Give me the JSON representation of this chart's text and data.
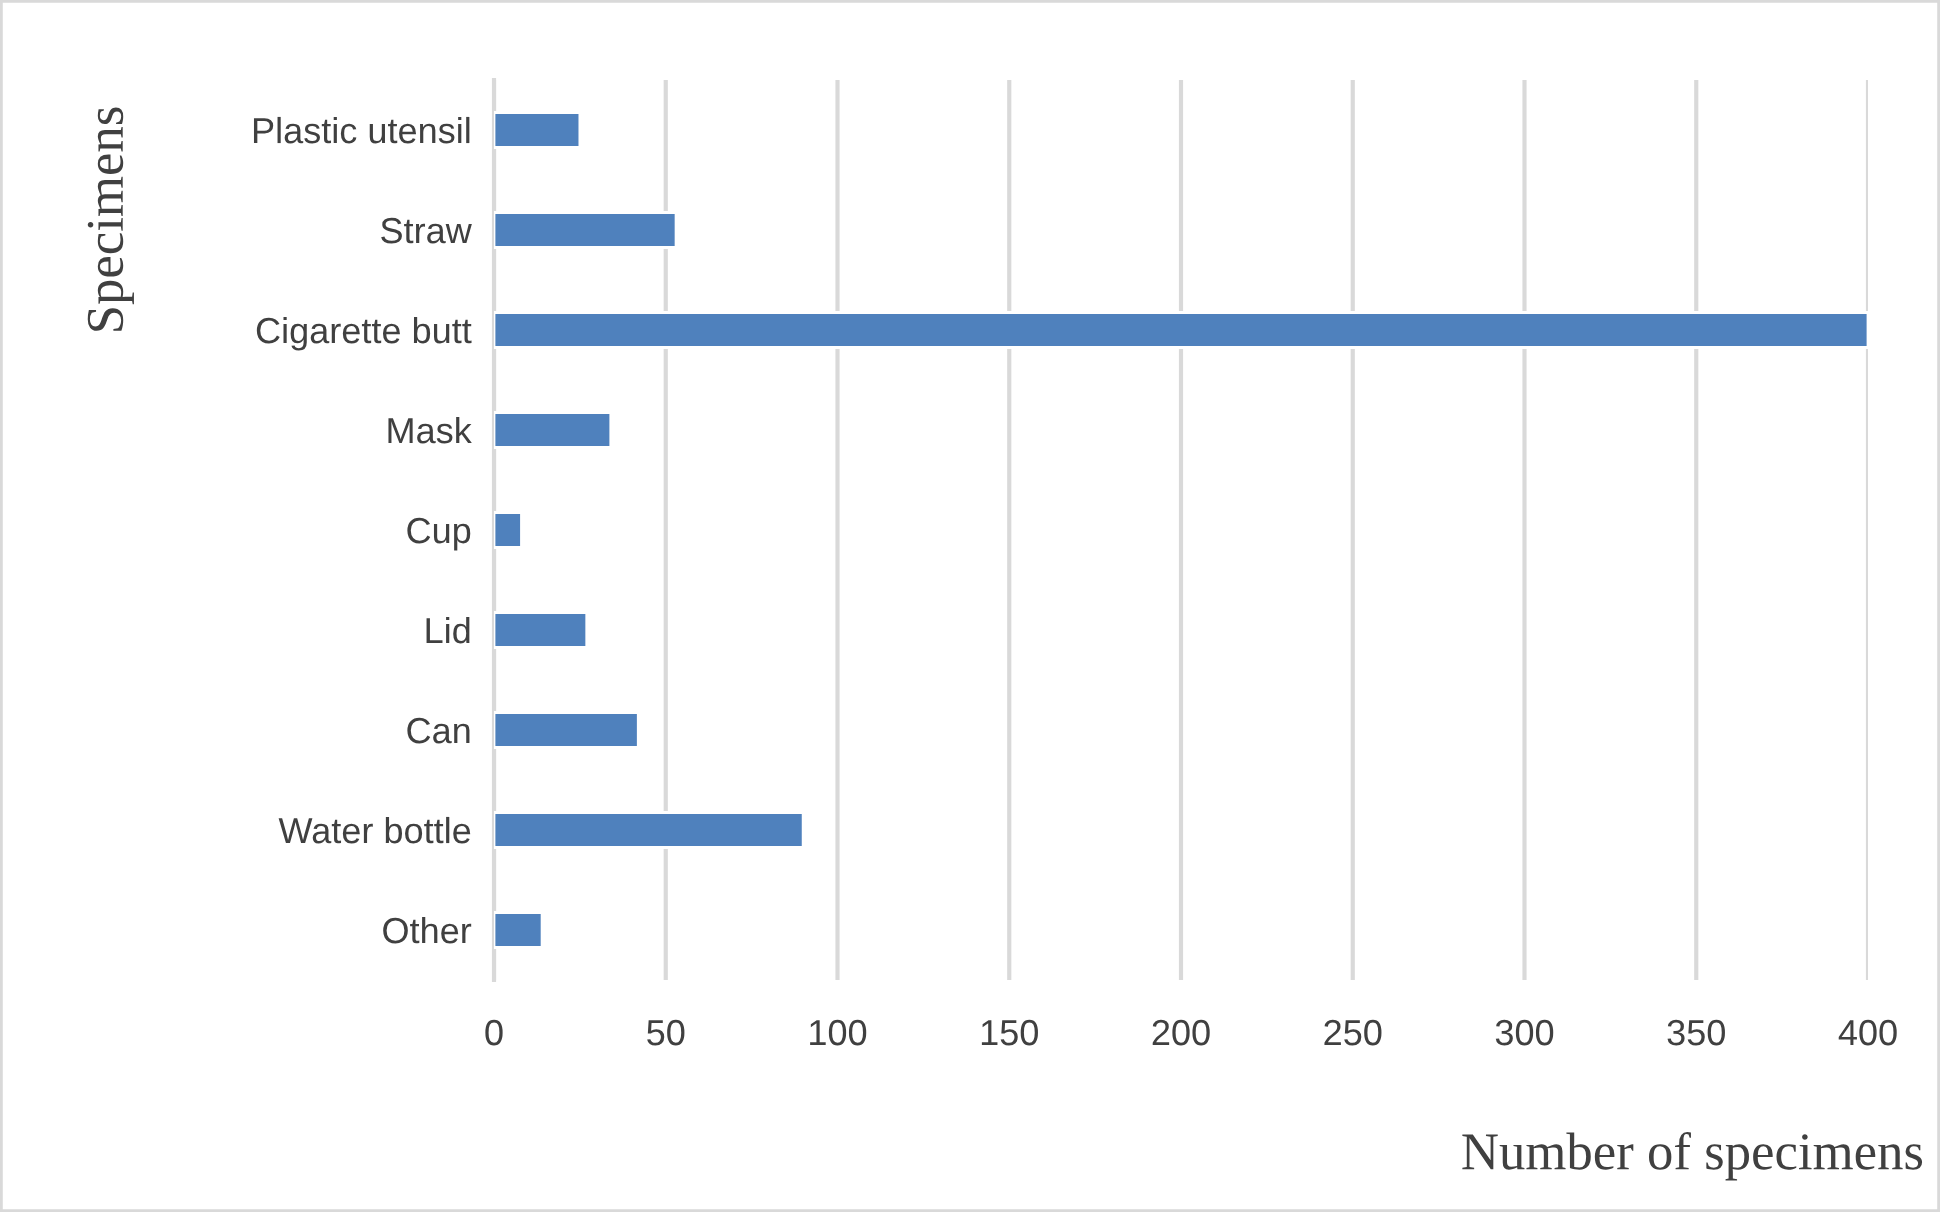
{
  "chart_data": {
    "type": "bar",
    "orientation": "horizontal",
    "xlabel": "Number of specimens",
    "ylabel": "Specimens",
    "categories": [
      "Plastic utensil",
      "Straw",
      "Cigarette butt",
      "Mask",
      "Cup",
      "Lid",
      "Can",
      "Water bottle",
      "Other"
    ],
    "values": [
      25,
      53,
      400,
      34,
      8,
      27,
      42,
      90,
      14
    ],
    "color": "#4f81bd",
    "xlim": [
      0,
      400
    ],
    "xticks": [
      0,
      50,
      100,
      150,
      200,
      250,
      300,
      350,
      400
    ],
    "grid": "x",
    "legend": false
  }
}
